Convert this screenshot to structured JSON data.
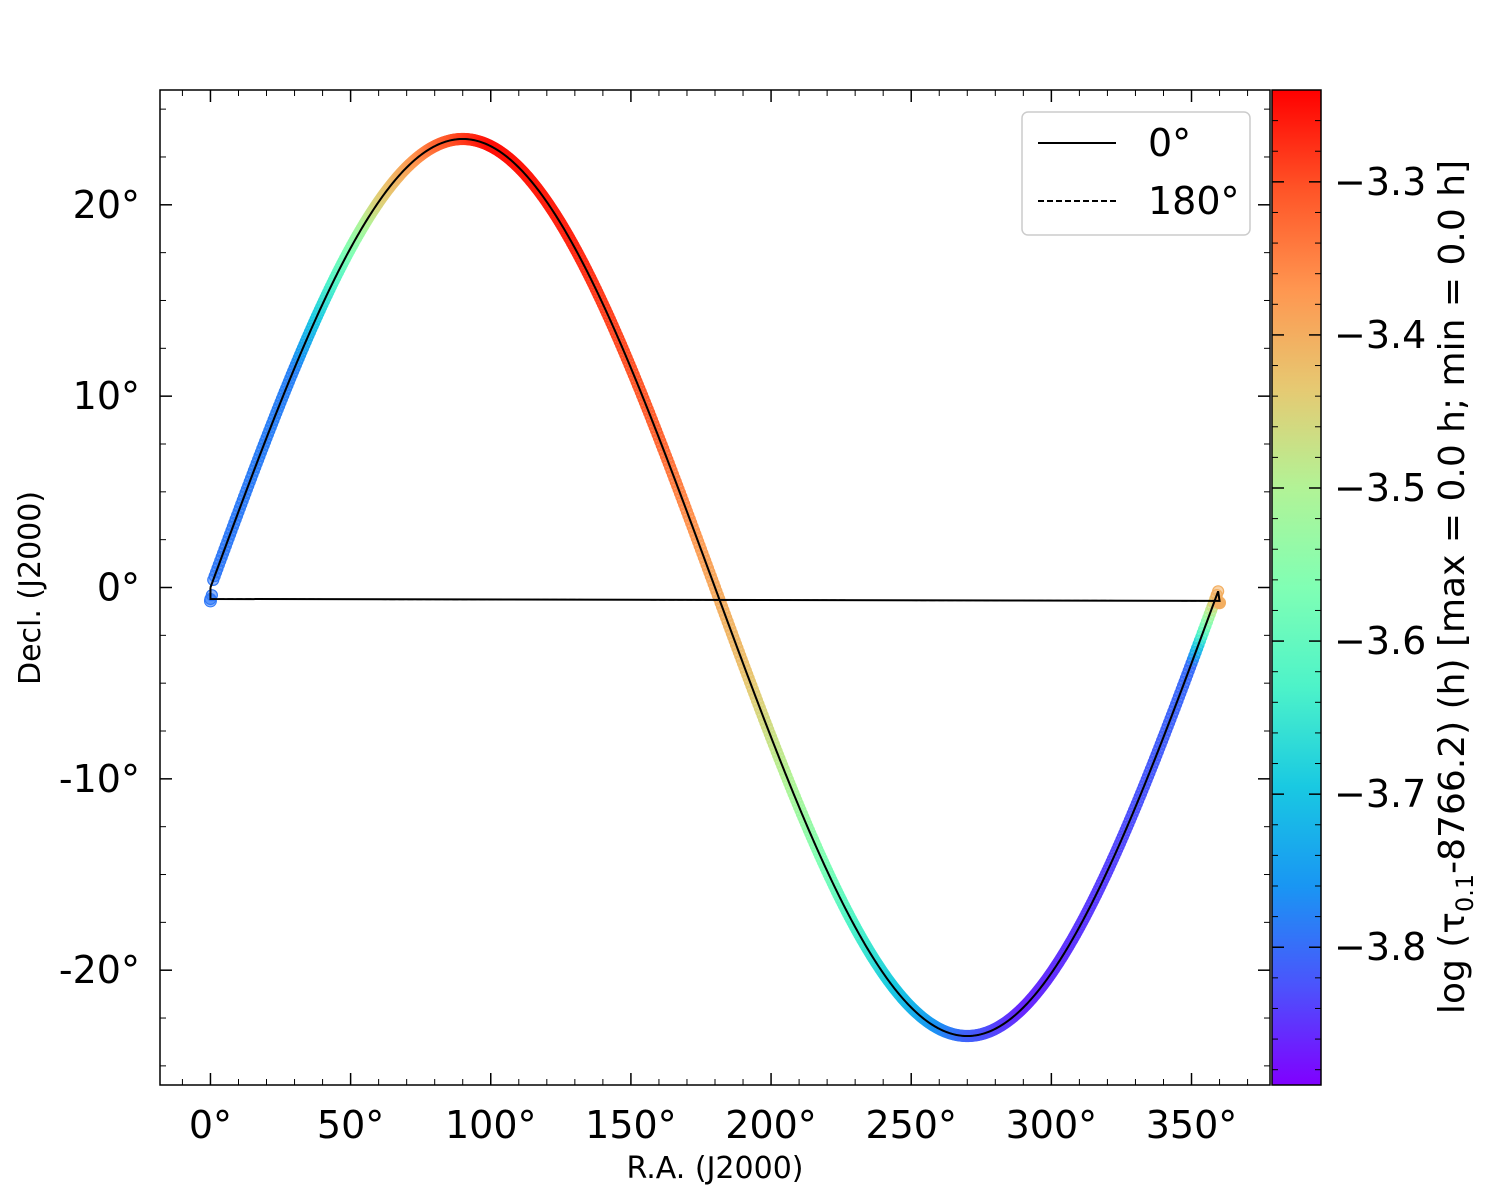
{
  "chart_data": {
    "type": "scatter",
    "xlabel": "R.A. (J2000)",
    "ylabel": "Decl. (J2000)",
    "xlim": [
      -18,
      378
    ],
    "ylim": [
      -26,
      26
    ],
    "x_ticks": [
      0,
      50,
      100,
      150,
      200,
      250,
      300,
      350
    ],
    "x_tick_labels": [
      "0°",
      "50°",
      "100°",
      "150°",
      "200°",
      "250°",
      "300°",
      "350°"
    ],
    "y_ticks": [
      20,
      10,
      0,
      -10,
      -20
    ],
    "y_tick_labels": [
      "20°",
      "10°",
      "0°",
      "-10°",
      "-20°"
    ],
    "grid": false,
    "legend": {
      "placement": "top-right",
      "entries": [
        {
          "label": "0°",
          "style": "solid"
        },
        {
          "label": "180°",
          "style": "dashed"
        }
      ]
    },
    "colorbar": {
      "label": "log (τ0.1-8766.2) (h) [max = 0.0 h; min = 0.0 h]",
      "label_prefix": "log (τ",
      "label_subscript": "0.1",
      "label_suffix": "-8766.2) (h) [max = 0.0 h; min = 0.0 h]",
      "vmin": -3.89,
      "vmax": -3.24,
      "ticks": [
        -3.3,
        -3.4,
        -3.5,
        -3.6,
        -3.7,
        -3.8
      ],
      "tick_labels": [
        "−3.3",
        "−3.4",
        "−3.5",
        "−3.6",
        "−3.7",
        "−3.8"
      ],
      "colormap": "rainbow"
    },
    "series": [
      {
        "description": "ecliptic path in equatorial coordinates (Decl = asin(sin 23.44° · sin λ))",
        "obliquity_deg": 23.44,
        "x_start": 0,
        "x_end": 359.5,
        "closing_segment": {
          "x": [
            360,
            0
          ],
          "y": [
            -0.7,
            -0.6
          ]
        }
      }
    ],
    "color_profile": {
      "x": [
        0,
        30,
        60,
        80,
        100,
        130,
        160,
        175,
        190,
        210,
        230,
        250,
        270,
        290,
        320,
        350,
        359
      ],
      "value": [
        -3.79,
        -3.78,
        -3.45,
        -3.33,
        -3.25,
        -3.27,
        -3.32,
        -3.38,
        -3.42,
        -3.52,
        -3.63,
        -3.72,
        -3.81,
        -3.86,
        -3.84,
        -3.8,
        -3.4
      ]
    }
  }
}
